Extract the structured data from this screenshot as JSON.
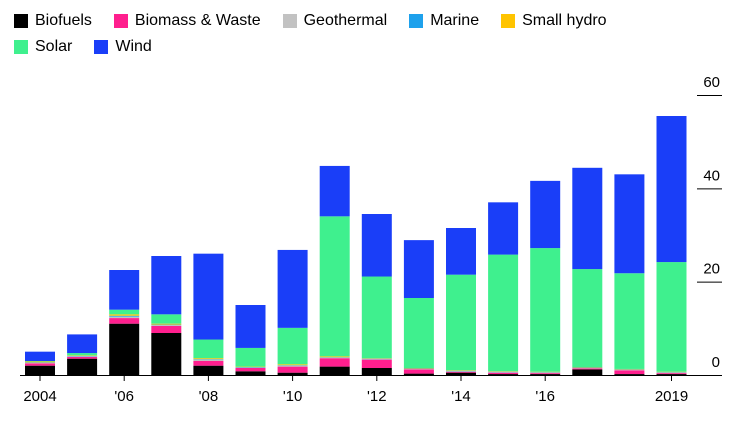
{
  "chart_data": {
    "type": "bar",
    "stacked": true,
    "x": [
      2004,
      2005,
      2006,
      2007,
      2008,
      2009,
      2010,
      2011,
      2012,
      2013,
      2014,
      2015,
      2016,
      2017,
      2018,
      2019
    ],
    "x_tick_labels": [
      {
        "year": 2004,
        "label": "2004"
      },
      {
        "year": 2006,
        "label": "'06"
      },
      {
        "year": 2008,
        "label": "'08"
      },
      {
        "year": 2010,
        "label": "'10"
      },
      {
        "year": 2012,
        "label": "'12"
      },
      {
        "year": 2014,
        "label": "'14"
      },
      {
        "year": 2016,
        "label": "'16"
      },
      {
        "year": 2019,
        "label": "2019"
      }
    ],
    "y_ticks": [
      0,
      20,
      40,
      60
    ],
    "ylim": [
      0,
      60
    ],
    "grid": false,
    "legend_position": "top-left",
    "series": [
      {
        "name": "Biofuels",
        "color": "#000000",
        "values": [
          2.0,
          3.5,
          11.0,
          9.0,
          2.0,
          0.8,
          0.5,
          1.8,
          1.5,
          0.3,
          0.5,
          0.2,
          0.2,
          1.2,
          0.2,
          0.2
        ]
      },
      {
        "name": "Biomass & Waste",
        "color": "#ff1f8e",
        "values": [
          0.5,
          0.4,
          1.2,
          1.5,
          1.0,
          0.7,
          1.3,
          1.8,
          1.8,
          0.9,
          0.2,
          0.3,
          0.2,
          0.2,
          0.8,
          0.2
        ]
      },
      {
        "name": "Geothermal",
        "color": "#c2c2c2",
        "values": [
          0.1,
          0.1,
          0.3,
          0.2,
          0.3,
          0.1,
          0.2,
          0.1,
          0.1,
          0.1,
          0.1,
          0.1,
          0.1,
          0.1,
          0.1,
          0.1
        ]
      },
      {
        "name": "Marine",
        "color": "#1ea1ec",
        "values": [
          0.1,
          0.1,
          0.2,
          0.1,
          0.1,
          0.1,
          0.1,
          0.1,
          0.1,
          0.1,
          0.1,
          0.1,
          0.1,
          0.1,
          0.1,
          0.1
        ]
      },
      {
        "name": "Small hydro",
        "color": "#ffc400",
        "values": [
          0.2,
          0.1,
          0.3,
          0.2,
          0.2,
          0.1,
          0.2,
          0.2,
          0.1,
          0.1,
          0.1,
          0.1,
          0.1,
          0.1,
          0.1,
          0.1
        ]
      },
      {
        "name": "Solar",
        "color": "#3ff08e",
        "values": [
          0.1,
          0.5,
          1.0,
          2.0,
          4.0,
          4.0,
          7.8,
          30.0,
          17.5,
          15.0,
          20.5,
          25.0,
          26.5,
          21.0,
          20.5,
          23.5
        ]
      },
      {
        "name": "Wind",
        "color": "#1a3ef8",
        "values": [
          2.0,
          4.0,
          8.5,
          12.5,
          18.4,
          9.2,
          16.7,
          10.8,
          13.4,
          12.4,
          10.0,
          11.2,
          14.4,
          21.7,
          21.2,
          31.3
        ]
      }
    ]
  }
}
